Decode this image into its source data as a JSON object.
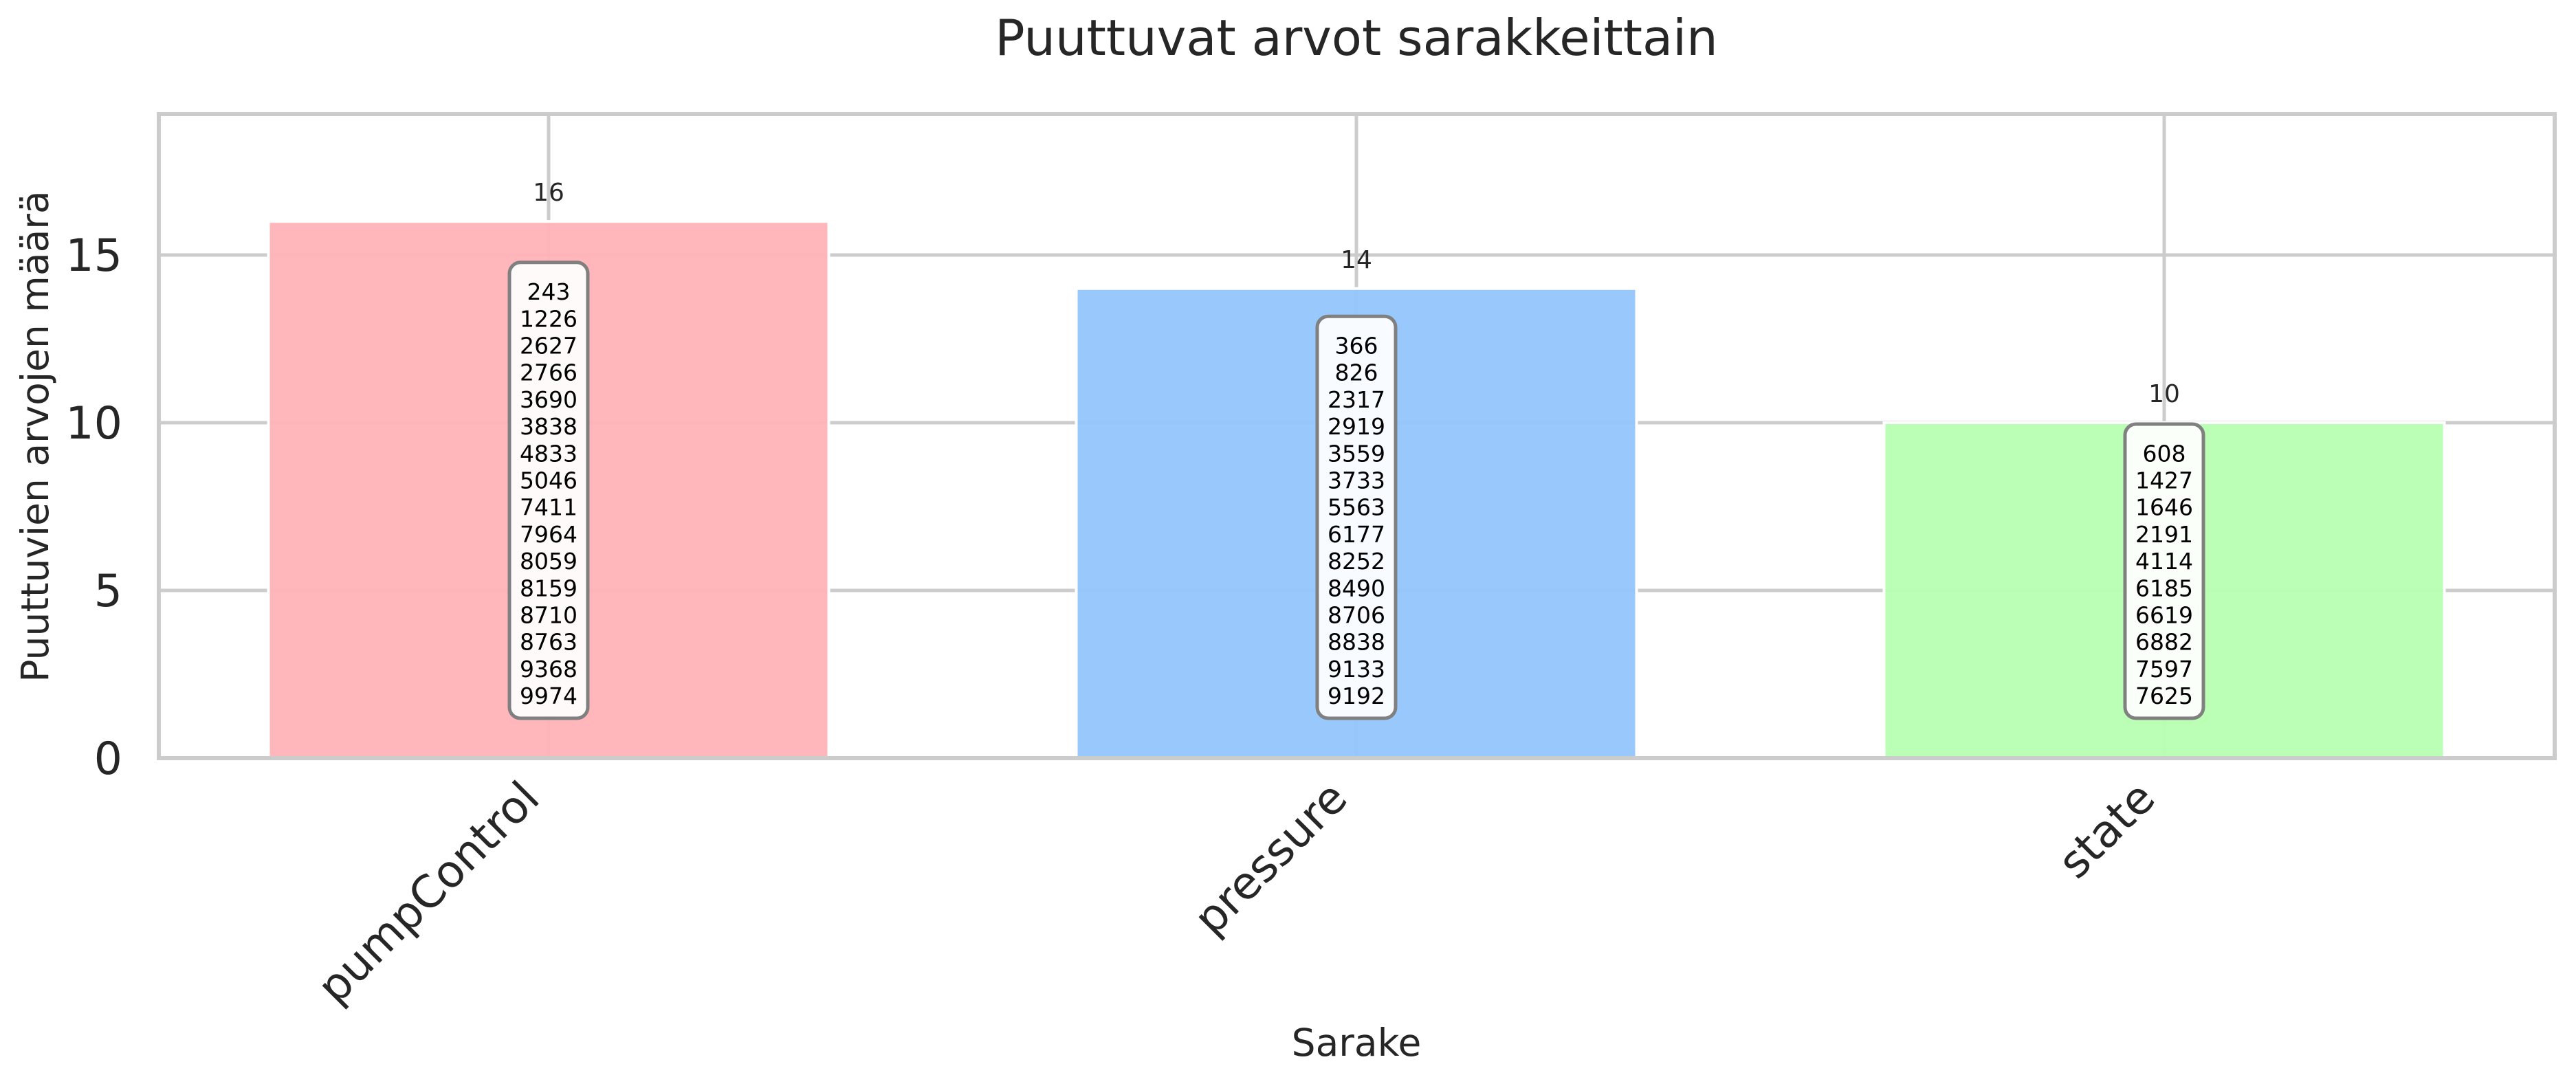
{
  "chart_data": {
    "type": "bar",
    "title": "Puuttuvat arvot sarakkeittain",
    "xlabel": "Sarake",
    "ylabel": "Puuttuvien arvojen määrä",
    "categories": [
      "pumpControl",
      "pressure",
      "state"
    ],
    "values": [
      16,
      14,
      10
    ],
    "ylim": [
      0,
      19.2
    ],
    "yticks": [
      "0",
      "5",
      "10",
      "15"
    ],
    "ytick_values": [
      0,
      5,
      10,
      15
    ],
    "grid": true,
    "colors": [
      "#ffb3b8",
      "#93c6fc",
      "#b6ffb1"
    ],
    "missing_indices": [
      [
        "243",
        "1226",
        "2627",
        "2766",
        "3690",
        "3838",
        "4833",
        "5046",
        "7411",
        "7964",
        "8059",
        "8159",
        "8710",
        "8763",
        "9368",
        "9974"
      ],
      [
        "366",
        "826",
        "2317",
        "2919",
        "3559",
        "3733",
        "5563",
        "6177",
        "8252",
        "8490",
        "8706",
        "8838",
        "9133",
        "9192"
      ],
      [
        "608",
        "1427",
        "1646",
        "2191",
        "4114",
        "6185",
        "6619",
        "6882",
        "7597",
        "7625"
      ]
    ]
  }
}
